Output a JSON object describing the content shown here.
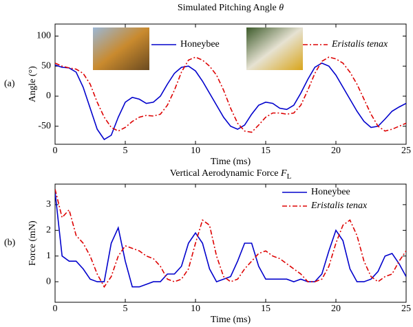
{
  "chart_data": [
    {
      "type": "line",
      "title": "Simulated Pitching Angle",
      "title_symbol": "θ",
      "panel_label": "(a)",
      "x_label": "Time (ms)",
      "y_label": "Angle (°)",
      "legend": "top",
      "xlim": [
        0,
        25
      ],
      "xticks": [
        0,
        5,
        10,
        15,
        20,
        25
      ],
      "ylim": [
        -80,
        120
      ],
      "yticks": [
        -50,
        0,
        50,
        100
      ],
      "x": [
        0,
        0.5,
        1,
        1.5,
        2,
        2.5,
        3,
        3.5,
        4,
        4.5,
        5,
        5.5,
        6,
        6.5,
        7,
        7.5,
        8,
        8.5,
        9,
        9.5,
        10,
        10.5,
        11,
        11.5,
        12,
        12.5,
        13,
        13.5,
        14,
        14.5,
        15,
        15.5,
        16,
        16.5,
        17,
        17.5,
        18,
        18.5,
        19,
        19.5,
        20,
        20.5,
        21,
        21.5,
        22,
        22.5,
        23,
        23.5,
        24,
        24.5,
        25
      ],
      "series": [
        {
          "name": "Honeybee",
          "color": "#0000cc",
          "dash": "solid",
          "values": [
            52,
            48,
            47,
            40,
            15,
            -20,
            -55,
            -72,
            -65,
            -35,
            -10,
            -2,
            -5,
            -12,
            -10,
            0,
            20,
            38,
            48,
            50,
            42,
            25,
            5,
            -15,
            -35,
            -50,
            -55,
            -48,
            -30,
            -15,
            -10,
            -12,
            -20,
            -22,
            -15,
            5,
            28,
            48,
            55,
            50,
            35,
            15,
            -5,
            -25,
            -42,
            -52,
            -50,
            -38,
            -25,
            -18,
            -12
          ]
        },
        {
          "name": "Eristalis tenax",
          "color": "#dd0000",
          "dash": "dashdot",
          "values": [
            55,
            50,
            47,
            45,
            38,
            20,
            -10,
            -35,
            -52,
            -58,
            -52,
            -42,
            -35,
            -32,
            -33,
            -30,
            -15,
            10,
            40,
            60,
            65,
            60,
            50,
            35,
            10,
            -20,
            -45,
            -58,
            -60,
            -48,
            -35,
            -28,
            -28,
            -30,
            -28,
            -15,
            10,
            38,
            58,
            65,
            62,
            55,
            40,
            20,
            -5,
            -30,
            -50,
            -58,
            -55,
            -50,
            -45
          ]
        }
      ]
    },
    {
      "type": "line",
      "title": "Vertical Aerodynamic Force",
      "title_symbol": "F",
      "title_subscript": "L",
      "panel_label": "(b)",
      "x_label": "Time (ms)",
      "y_label": "Force (mN)",
      "legend": "upper right",
      "xlim": [
        0,
        25
      ],
      "xticks": [
        0,
        5,
        10,
        15,
        20,
        25
      ],
      "ylim": [
        -0.8,
        3.8
      ],
      "yticks": [
        0,
        1,
        2,
        3
      ],
      "x": [
        0,
        0.5,
        1,
        1.5,
        2,
        2.5,
        3,
        3.5,
        4,
        4.5,
        5,
        5.5,
        6,
        6.5,
        7,
        7.5,
        8,
        8.5,
        9,
        9.5,
        10,
        10.5,
        11,
        11.5,
        12,
        12.5,
        13,
        13.5,
        14,
        14.5,
        15,
        15.5,
        16,
        16.5,
        17,
        17.5,
        18,
        18.5,
        19,
        19.5,
        20,
        20.5,
        21,
        21.5,
        22,
        22.5,
        23,
        23.5,
        24,
        24.5,
        25
      ],
      "series": [
        {
          "name": "Honeybee",
          "color": "#0000cc",
          "dash": "solid",
          "values": [
            3.5,
            1.0,
            0.8,
            0.8,
            0.5,
            0.1,
            0.0,
            0.0,
            1.5,
            2.1,
            0.8,
            -0.2,
            -0.2,
            -0.1,
            0.0,
            0.0,
            0.3,
            0.3,
            0.6,
            1.5,
            1.9,
            1.5,
            0.5,
            0.0,
            0.1,
            0.2,
            0.8,
            1.5,
            1.5,
            0.6,
            0.1,
            0.1,
            0.1,
            0.1,
            0.0,
            0.1,
            0.0,
            0.0,
            0.3,
            1.2,
            2.0,
            1.6,
            0.5,
            0.0,
            0.0,
            0.1,
            0.4,
            1.0,
            1.1,
            0.7,
            0.2
          ]
        },
        {
          "name": "Eristalis tenax",
          "color": "#dd0000",
          "dash": "dashdot",
          "values": [
            3.6,
            2.5,
            2.8,
            1.8,
            1.5,
            1.0,
            0.3,
            -0.2,
            0.2,
            1.0,
            1.4,
            1.3,
            1.2,
            1.0,
            0.9,
            0.6,
            0.1,
            0.0,
            0.1,
            0.5,
            1.5,
            2.4,
            2.2,
            1.0,
            0.2,
            0.0,
            0.1,
            0.5,
            0.8,
            1.1,
            1.2,
            1.0,
            0.9,
            0.7,
            0.5,
            0.3,
            0.0,
            0.0,
            0.1,
            0.6,
            1.5,
            2.2,
            2.4,
            1.8,
            0.8,
            0.2,
            0.0,
            0.2,
            0.3,
            0.8,
            1.2
          ]
        }
      ]
    }
  ]
}
